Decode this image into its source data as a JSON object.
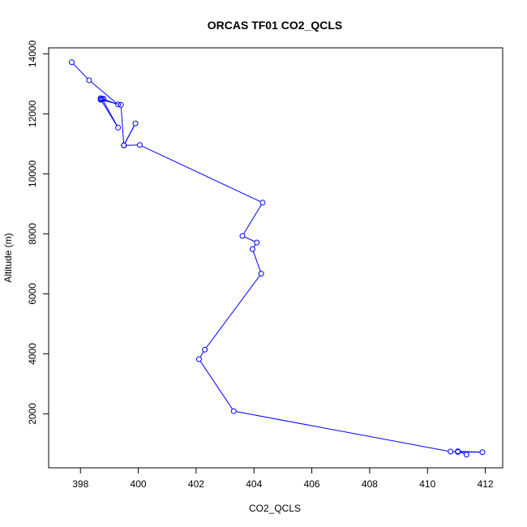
{
  "chart_data": {
    "type": "line",
    "title": "ORCAS TF01 CO2_QCLS",
    "xlabel": "CO2_QCLS",
    "ylabel": "Altitude (m)",
    "xlim": [
      396.9,
      412.6
    ],
    "ylim": [
      200,
      14200
    ],
    "xticks": [
      398,
      400,
      402,
      404,
      406,
      408,
      410,
      412
    ],
    "yticks": [
      2000,
      4000,
      6000,
      8000,
      10000,
      12000,
      14000
    ],
    "markers": "open-circle",
    "line_color": "#0000ff",
    "series": [
      {
        "x": [
          397.7,
          398.3,
          399.3,
          398.7,
          398.8,
          398.7,
          399.3,
          398.75,
          398.7,
          399.4,
          399.5,
          399.9,
          399.5,
          400.05,
          404.3,
          403.6,
          404.1,
          403.95,
          404.25,
          402.3,
          402.1,
          403.3,
          410.8,
          411.05,
          411.9,
          411.05,
          411.35
        ],
        "y": [
          13720,
          13120,
          12310,
          12520,
          12500,
          12480,
          11540,
          12500,
          12470,
          12300,
          10950,
          11680,
          10950,
          10960,
          9040,
          7930,
          7710,
          7490,
          6670,
          4140,
          3820,
          2090,
          740,
          730,
          720,
          750,
          640
        ]
      }
    ]
  }
}
